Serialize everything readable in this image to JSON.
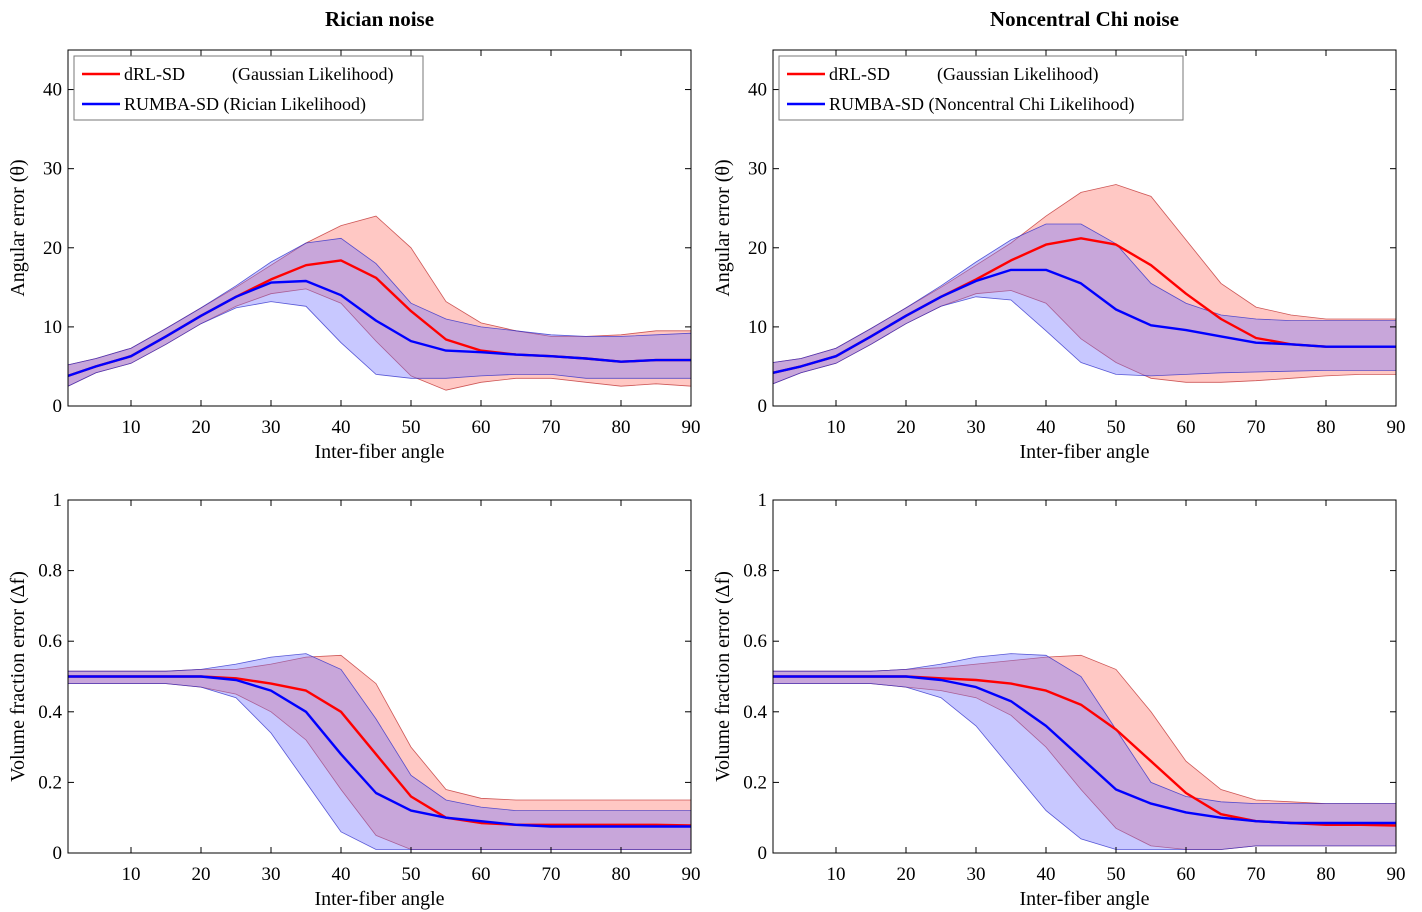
{
  "chart_data": [
    {
      "type": "line",
      "title": "Rician noise",
      "xlabel": "Inter-fiber angle",
      "ylabel": "Angular error (θ)",
      "xlim": [
        1,
        90
      ],
      "ylim": [
        0,
        45
      ],
      "xticks": [
        10,
        20,
        30,
        40,
        50,
        60,
        70,
        80,
        90
      ],
      "yticks": [
        0,
        10,
        20,
        30,
        40
      ],
      "grid": false,
      "legend_position": "top-left",
      "x": [
        1,
        5,
        10,
        15,
        20,
        25,
        30,
        35,
        40,
        45,
        50,
        55,
        60,
        65,
        70,
        75,
        80,
        85,
        90
      ],
      "series": [
        {
          "name": "dRL-SD",
          "legend_note": "(Gaussian Likelihood)",
          "color": "#ff0000",
          "mean": [
            3.8,
            5.0,
            6.3,
            8.8,
            11.4,
            13.8,
            16.0,
            17.8,
            18.4,
            16.2,
            12.0,
            8.4,
            7.0,
            6.5,
            6.3,
            6.0,
            5.6,
            5.8,
            5.8
          ],
          "lower": [
            2.5,
            4.2,
            5.4,
            7.8,
            10.4,
            12.6,
            14.2,
            14.8,
            13.0,
            8.2,
            3.8,
            2.0,
            3.0,
            3.5,
            3.5,
            3.0,
            2.5,
            2.8,
            2.5
          ],
          "upper": [
            5.2,
            6.0,
            7.3,
            9.8,
            12.4,
            15.0,
            17.8,
            20.6,
            22.8,
            24.0,
            20.0,
            13.2,
            10.5,
            9.5,
            8.8,
            8.8,
            9.0,
            9.5,
            9.5
          ]
        },
        {
          "name": "RUMBA-SD",
          "legend_note": "(Rician Likelihood)",
          "color": "#0000ff",
          "mean": [
            3.8,
            5.0,
            6.3,
            8.8,
            11.4,
            13.8,
            15.6,
            15.8,
            14.0,
            10.8,
            8.2,
            7.0,
            6.8,
            6.5,
            6.3,
            6.0,
            5.6,
            5.8,
            5.8
          ],
          "lower": [
            2.5,
            4.2,
            5.4,
            7.8,
            10.4,
            12.4,
            13.2,
            12.6,
            8.0,
            4.0,
            3.5,
            3.5,
            3.8,
            4.0,
            4.0,
            3.5,
            3.5,
            3.5,
            3.5
          ],
          "upper": [
            5.2,
            6.0,
            7.3,
            9.8,
            12.4,
            15.2,
            18.2,
            20.6,
            21.2,
            18.0,
            13.0,
            11.0,
            10.0,
            9.5,
            9.0,
            8.8,
            8.8,
            9.0,
            9.2
          ]
        }
      ]
    },
    {
      "type": "line",
      "title": "Noncentral Chi noise",
      "xlabel": "Inter-fiber angle",
      "ylabel": "Angular error (θ)",
      "xlim": [
        1,
        90
      ],
      "ylim": [
        0,
        45
      ],
      "xticks": [
        10,
        20,
        30,
        40,
        50,
        60,
        70,
        80,
        90
      ],
      "yticks": [
        0,
        10,
        20,
        30,
        40
      ],
      "grid": false,
      "legend_position": "top-left",
      "x": [
        1,
        5,
        10,
        15,
        20,
        25,
        30,
        35,
        40,
        45,
        50,
        55,
        60,
        65,
        70,
        75,
        80,
        85,
        90
      ],
      "series": [
        {
          "name": "dRL-SD",
          "legend_note": "(Gaussian Likelihood)",
          "color": "#ff0000",
          "mean": [
            4.2,
            5.0,
            6.3,
            8.8,
            11.4,
            13.8,
            16.0,
            18.4,
            20.4,
            21.2,
            20.4,
            17.8,
            14.2,
            11.0,
            8.6,
            7.8,
            7.5,
            7.5,
            7.5
          ],
          "lower": [
            2.8,
            4.2,
            5.4,
            7.8,
            10.4,
            12.6,
            14.2,
            14.6,
            13.0,
            8.5,
            5.5,
            3.5,
            3.0,
            3.0,
            3.2,
            3.5,
            3.8,
            4.0,
            4.0
          ],
          "upper": [
            5.5,
            6.0,
            7.3,
            9.8,
            12.4,
            15.0,
            17.8,
            20.6,
            24.0,
            27.0,
            28.0,
            26.5,
            21.0,
            15.5,
            12.5,
            11.5,
            11.0,
            11.0,
            11.0
          ]
        },
        {
          "name": "RUMBA-SD",
          "legend_note": "(Noncentral Chi Likelihood)",
          "color": "#0000ff",
          "mean": [
            4.2,
            5.0,
            6.3,
            8.8,
            11.4,
            13.8,
            15.8,
            17.2,
            17.2,
            15.5,
            12.2,
            10.2,
            9.6,
            8.8,
            8.0,
            7.8,
            7.5,
            7.5,
            7.5
          ],
          "lower": [
            2.8,
            4.2,
            5.4,
            7.8,
            10.4,
            12.6,
            13.8,
            13.4,
            9.5,
            5.5,
            4.0,
            3.8,
            4.0,
            4.2,
            4.3,
            4.4,
            4.5,
            4.5,
            4.5
          ],
          "upper": [
            5.5,
            6.0,
            7.3,
            9.8,
            12.4,
            15.2,
            18.2,
            21.0,
            23.0,
            23.0,
            20.5,
            15.5,
            13.0,
            11.5,
            11.0,
            10.8,
            10.8,
            10.8,
            10.8
          ]
        }
      ]
    },
    {
      "type": "line",
      "title": "",
      "xlabel": "Inter-fiber angle",
      "ylabel": "Volume fraction error (Δf)",
      "xlim": [
        1,
        90
      ],
      "ylim": [
        0,
        1
      ],
      "xticks": [
        10,
        20,
        30,
        40,
        50,
        60,
        70,
        80,
        90
      ],
      "yticks": [
        0,
        0.2,
        0.4,
        0.6,
        0.8,
        1
      ],
      "grid": false,
      "x": [
        1,
        5,
        10,
        15,
        20,
        25,
        30,
        35,
        40,
        45,
        50,
        55,
        60,
        65,
        70,
        75,
        80,
        85,
        90
      ],
      "series": [
        {
          "name": "dRL-SD",
          "color": "#ff0000",
          "mean": [
            0.5,
            0.5,
            0.5,
            0.5,
            0.5,
            0.495,
            0.48,
            0.46,
            0.4,
            0.28,
            0.16,
            0.1,
            0.085,
            0.08,
            0.08,
            0.08,
            0.08,
            0.08,
            0.078
          ],
          "lower": [
            0.48,
            0.48,
            0.48,
            0.48,
            0.47,
            0.45,
            0.4,
            0.32,
            0.18,
            0.05,
            0.01,
            0.01,
            0.01,
            0.01,
            0.01,
            0.01,
            0.01,
            0.01,
            0.01
          ],
          "upper": [
            0.515,
            0.515,
            0.515,
            0.515,
            0.52,
            0.52,
            0.535,
            0.555,
            0.56,
            0.48,
            0.3,
            0.18,
            0.155,
            0.15,
            0.15,
            0.15,
            0.15,
            0.15,
            0.15
          ]
        },
        {
          "name": "RUMBA-SD",
          "color": "#0000ff",
          "mean": [
            0.5,
            0.5,
            0.5,
            0.5,
            0.5,
            0.49,
            0.46,
            0.4,
            0.28,
            0.17,
            0.12,
            0.1,
            0.09,
            0.08,
            0.075,
            0.075,
            0.075,
            0.075,
            0.075
          ],
          "lower": [
            0.48,
            0.48,
            0.48,
            0.48,
            0.47,
            0.44,
            0.34,
            0.2,
            0.06,
            0.01,
            0.01,
            0.01,
            0.01,
            0.01,
            0.01,
            0.01,
            0.01,
            0.01,
            0.01
          ],
          "upper": [
            0.515,
            0.515,
            0.515,
            0.515,
            0.52,
            0.535,
            0.555,
            0.565,
            0.52,
            0.38,
            0.22,
            0.15,
            0.13,
            0.12,
            0.12,
            0.12,
            0.12,
            0.12,
            0.12
          ]
        }
      ]
    },
    {
      "type": "line",
      "title": "",
      "xlabel": "Inter-fiber angle",
      "ylabel": "Volume fraction error (Δf)",
      "xlim": [
        1,
        90
      ],
      "ylim": [
        0,
        1
      ],
      "xticks": [
        10,
        20,
        30,
        40,
        50,
        60,
        70,
        80,
        90
      ],
      "yticks": [
        0,
        0.2,
        0.4,
        0.6,
        0.8,
        1
      ],
      "grid": false,
      "x": [
        1,
        5,
        10,
        15,
        20,
        25,
        30,
        35,
        40,
        45,
        50,
        55,
        60,
        65,
        70,
        75,
        80,
        85,
        90
      ],
      "series": [
        {
          "name": "dRL-SD",
          "color": "#ff0000",
          "mean": [
            0.5,
            0.5,
            0.5,
            0.5,
            0.5,
            0.495,
            0.49,
            0.48,
            0.46,
            0.42,
            0.35,
            0.26,
            0.17,
            0.11,
            0.09,
            0.085,
            0.08,
            0.08,
            0.078
          ],
          "lower": [
            0.48,
            0.48,
            0.48,
            0.48,
            0.47,
            0.46,
            0.44,
            0.39,
            0.3,
            0.18,
            0.07,
            0.02,
            0.01,
            0.01,
            0.02,
            0.02,
            0.02,
            0.02,
            0.02
          ],
          "upper": [
            0.515,
            0.515,
            0.515,
            0.515,
            0.52,
            0.525,
            0.535,
            0.545,
            0.555,
            0.56,
            0.52,
            0.4,
            0.26,
            0.18,
            0.15,
            0.145,
            0.14,
            0.14,
            0.14
          ]
        },
        {
          "name": "RUMBA-SD",
          "color": "#0000ff",
          "mean": [
            0.5,
            0.5,
            0.5,
            0.5,
            0.5,
            0.49,
            0.47,
            0.43,
            0.36,
            0.27,
            0.18,
            0.14,
            0.115,
            0.1,
            0.09,
            0.085,
            0.085,
            0.085,
            0.085
          ],
          "lower": [
            0.48,
            0.48,
            0.48,
            0.48,
            0.47,
            0.44,
            0.36,
            0.24,
            0.12,
            0.04,
            0.01,
            0.01,
            0.01,
            0.01,
            0.02,
            0.02,
            0.02,
            0.02,
            0.02
          ],
          "upper": [
            0.515,
            0.515,
            0.515,
            0.515,
            0.52,
            0.535,
            0.555,
            0.565,
            0.56,
            0.5,
            0.35,
            0.2,
            0.16,
            0.145,
            0.14,
            0.14,
            0.14,
            0.14,
            0.14
          ]
        }
      ]
    }
  ]
}
